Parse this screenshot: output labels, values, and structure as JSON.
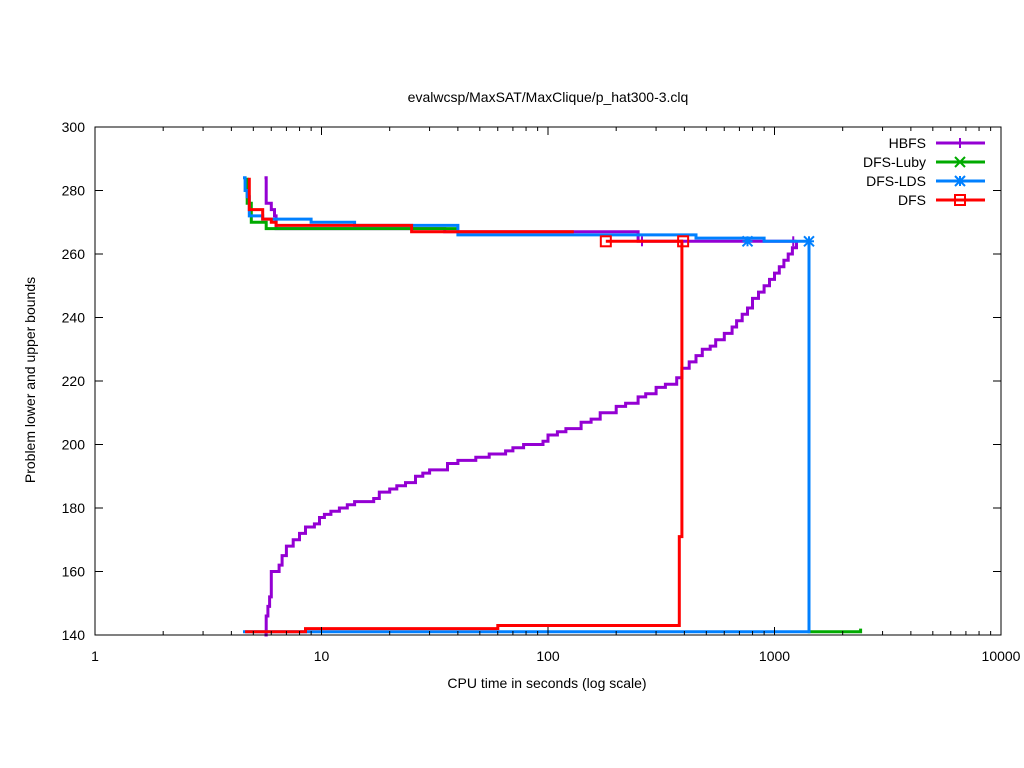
{
  "chart_data": {
    "type": "line",
    "title": "evalwcsp/MaxSAT/MaxClique/p_hat300-3.clq",
    "xlabel": "CPU time in seconds (log scale)",
    "ylabel": "Problem lower and upper bounds",
    "x_scale": "log",
    "xlim": [
      1,
      10000
    ],
    "ylim": [
      140,
      300
    ],
    "x_ticks": [
      1,
      10,
      100,
      1000,
      10000
    ],
    "x_tick_labels": [
      "1",
      "10",
      "100",
      "1000",
      "10000"
    ],
    "y_ticks": [
      140,
      160,
      180,
      200,
      220,
      240,
      260,
      280,
      300
    ],
    "y_tick_labels": [
      "140",
      "160",
      "180",
      "200",
      "220",
      "240",
      "260",
      "280",
      "300"
    ],
    "grid": false,
    "legend_position": "top-right",
    "series": [
      {
        "name": "HBFS",
        "color": "#9400d3",
        "marker": "plus",
        "markers": [
          [
            260,
            264
          ],
          [
            1210,
            264
          ]
        ],
        "segments": [
          [
            [
              5.6,
              284
            ],
            [
              5.7,
              278
            ],
            [
              5.7,
              276
            ],
            [
              6.0,
              274
            ],
            [
              6.2,
              272
            ],
            [
              6.3,
              270
            ],
            [
              6.3,
              268
            ],
            [
              20,
              268
            ],
            [
              35,
              267
            ],
            [
              65,
              267
            ],
            [
              250,
              264
            ],
            [
              1250,
              264
            ]
          ],
          [
            [
              5.6,
              140
            ],
            [
              5.7,
              146
            ],
            [
              5.8,
              149
            ],
            [
              5.9,
              152
            ],
            [
              6.0,
              160
            ],
            [
              6.5,
              162
            ],
            [
              6.7,
              165
            ],
            [
              7.0,
              168
            ],
            [
              7.5,
              170
            ],
            [
              8.0,
              172
            ],
            [
              8.5,
              174
            ],
            [
              9.3,
              175
            ],
            [
              9.8,
              177
            ],
            [
              10.3,
              178
            ],
            [
              11.0,
              179
            ],
            [
              12.0,
              180
            ],
            [
              13.0,
              181
            ],
            [
              14.0,
              182
            ],
            [
              17.0,
              183
            ],
            [
              18.0,
              185
            ],
            [
              20.0,
              186
            ],
            [
              21.5,
              187
            ],
            [
              23.5,
              188
            ],
            [
              26.0,
              190
            ],
            [
              28.0,
              191
            ],
            [
              30.0,
              192
            ],
            [
              36.0,
              194
            ],
            [
              40.0,
              195
            ],
            [
              48.0,
              196
            ],
            [
              55.0,
              197
            ],
            [
              65.0,
              198
            ],
            [
              70.0,
              199
            ],
            [
              78.0,
              200
            ],
            [
              95.0,
              201
            ],
            [
              100.0,
              203
            ],
            [
              110.0,
              204
            ],
            [
              120.0,
              205
            ],
            [
              140.0,
              207
            ],
            [
              155.0,
              208
            ],
            [
              170.0,
              210
            ],
            [
              200.0,
              212
            ],
            [
              220.0,
              213
            ],
            [
              250.0,
              215
            ],
            [
              270.0,
              216
            ],
            [
              300.0,
              218
            ],
            [
              330.0,
              219
            ],
            [
              370.0,
              221
            ],
            [
              390.0,
              224
            ],
            [
              420.0,
              226
            ],
            [
              450.0,
              228
            ],
            [
              480.0,
              230
            ],
            [
              520.0,
              231
            ],
            [
              550.0,
              233
            ],
            [
              600.0,
              235
            ],
            [
              650.0,
              237
            ],
            [
              680.0,
              239
            ],
            [
              720.0,
              241
            ],
            [
              760.0,
              243
            ],
            [
              800.0,
              246
            ],
            [
              850.0,
              248
            ],
            [
              900.0,
              250
            ],
            [
              950.0,
              252
            ],
            [
              1000.0,
              254
            ],
            [
              1050.0,
              256
            ],
            [
              1100.0,
              258
            ],
            [
              1150.0,
              260
            ],
            [
              1200.0,
              262
            ],
            [
              1250.0,
              264
            ]
          ]
        ]
      },
      {
        "name": "DFS-Luby",
        "color": "#00aa00",
        "marker": "x",
        "markers": [],
        "segments": [
          [
            [
              4.7,
              284
            ],
            [
              4.7,
              276
            ],
            [
              4.9,
              270
            ],
            [
              5.7,
              268
            ],
            [
              40,
              268
            ]
          ],
          [
            [
              1400,
              141
            ],
            [
              2400,
              141
            ],
            [
              2400,
              142
            ]
          ]
        ]
      },
      {
        "name": "DFS-LDS",
        "color": "#0080ff",
        "marker": "asterisk",
        "markers": [
          [
            760,
            264
          ],
          [
            1420,
            264
          ]
        ],
        "segments": [
          [
            [
              4.5,
              284
            ],
            [
              4.6,
              280
            ],
            [
              4.7,
              278
            ],
            [
              4.8,
              272
            ],
            [
              5.5,
              271
            ],
            [
              9.0,
              270
            ],
            [
              14.0,
              269
            ],
            [
              40.0,
              266
            ],
            [
              450.0,
              265
            ],
            [
              900.0,
              264
            ],
            [
              1420,
              264
            ]
          ],
          [
            [
              4.5,
              141
            ],
            [
              1400,
              141
            ],
            [
              1420,
              178
            ],
            [
              1420,
              264
            ]
          ]
        ]
      },
      {
        "name": "DFS",
        "color": "#ff0000",
        "marker": "square",
        "markers": [
          [
            180,
            264
          ],
          [
            395,
            264
          ]
        ],
        "segments": [
          [
            [
              4.8,
              284
            ],
            [
              4.8,
              274
            ],
            [
              5.5,
              271
            ],
            [
              6.0,
              270
            ],
            [
              6.3,
              269
            ],
            [
              25,
              267
            ],
            [
              40,
              267
            ],
            [
              130,
              267
            ]
          ],
          [
            [
              4.6,
              141
            ],
            [
              8.5,
              142
            ],
            [
              60,
              143
            ],
            [
              380,
              171
            ],
            [
              390,
              264
            ],
            [
              395,
              264
            ]
          ],
          [
            [
              180,
              264
            ],
            [
              395,
              264
            ]
          ]
        ]
      }
    ]
  }
}
